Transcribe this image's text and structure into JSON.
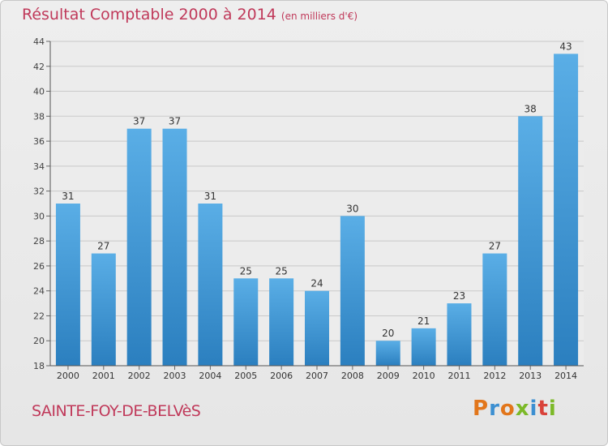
{
  "header": {
    "title": "Résultat Comptable 2000 à 2014",
    "subtitle": "(en milliers d'€)"
  },
  "footer": {
    "commune": "SAINTE-FOY-DE-BELVèS",
    "logo": "Proxiti"
  },
  "colors": {
    "bar_top": "#5aaee6",
    "bar_bottom": "#2b7fbf",
    "title": "#c0395a",
    "logo_letters": [
      "#e2761b",
      "#3c8fd1",
      "#e2761b",
      "#7cb928",
      "#3c8fd1",
      "#d9423a",
      "#7cb928"
    ]
  },
  "chart_data": {
    "type": "bar",
    "categories": [
      "2000",
      "2001",
      "2002",
      "2003",
      "2004",
      "2005",
      "2006",
      "2007",
      "2008",
      "2009",
      "2010",
      "2011",
      "2012",
      "2013",
      "2014"
    ],
    "values": [
      31,
      27,
      37,
      37,
      31,
      25,
      25,
      24,
      30,
      20,
      21,
      23,
      27,
      38,
      43
    ],
    "ylim": [
      18,
      44
    ],
    "yticks": [
      18,
      20,
      22,
      24,
      26,
      28,
      30,
      32,
      34,
      36,
      38,
      40,
      42,
      44
    ],
    "grid": true
  }
}
